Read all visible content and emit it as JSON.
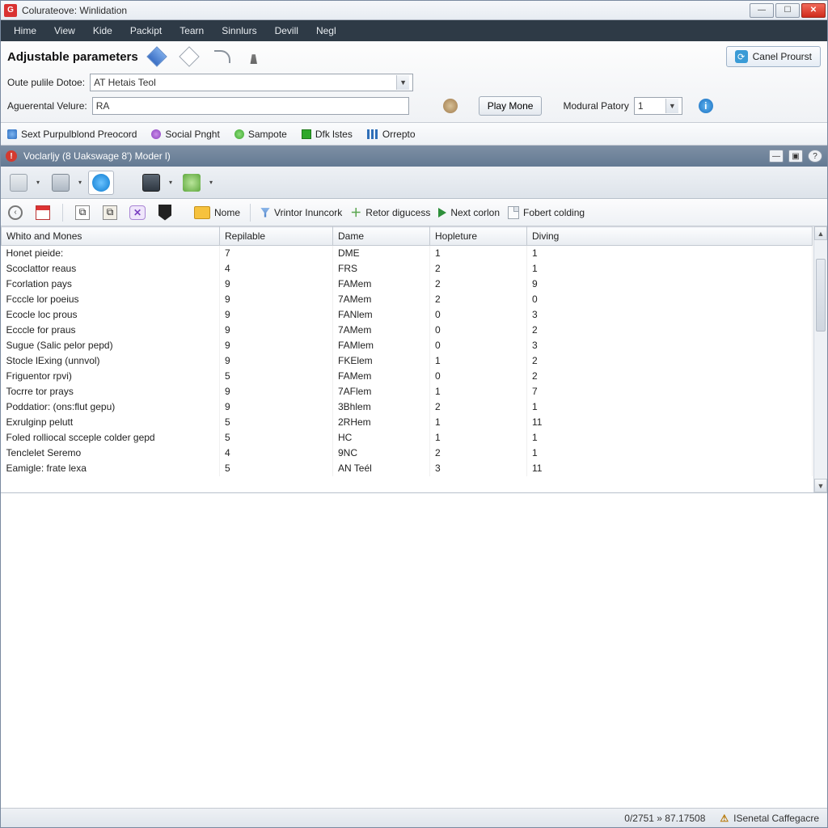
{
  "window": {
    "title": "Colurateove: Winlidation",
    "app_icon_letter": "G"
  },
  "menu": [
    "Hime",
    "View",
    "Kide",
    "Packipt",
    "Tearn",
    "Sinnlurs",
    "Devill",
    "Negl"
  ],
  "params": {
    "heading": "Adjustable parameters",
    "cancel_label": "Canel Prourst",
    "field1_label": "Oute pulile Dotoe:",
    "field1_value": "AT Hetais Teol",
    "field2_label": "Aguerental Velure:",
    "field2_value": "RA",
    "play_label": "Play Mone",
    "modural_label": "Modural Patory",
    "modural_value": "1"
  },
  "tabs": [
    {
      "icon": "blue-square",
      "label": "Sext Purpulblond Preocord"
    },
    {
      "icon": "purple-dot",
      "label": "Social Pnght"
    },
    {
      "icon": "green-dot",
      "label": "Sampote"
    },
    {
      "icon": "green-sq",
      "label": "Dfk lstes"
    },
    {
      "icon": "bars",
      "label": "Orrepto"
    }
  ],
  "section_header": "Voclarljy (8 Uakswage 8') Moder l)",
  "toolbar2": {
    "nome": "Nome",
    "vrintor": "Vrintor Inuncork",
    "retor": "Retor digucess",
    "next": "Next corlon",
    "fobert": "Fobert colding"
  },
  "table": {
    "columns": [
      "Whito and Mones",
      "Repilable",
      "Dame",
      "Hopleture",
      "Diving"
    ],
    "col_widths": [
      "270px",
      "140px",
      "120px",
      "120px",
      "auto"
    ],
    "rows": [
      [
        "Honet pieide:",
        "7",
        "DME",
        "1",
        "1"
      ],
      [
        "Scoclattor reaus",
        "4",
        "FRS",
        "2",
        "1"
      ],
      [
        "Fcorlation pays",
        "9",
        "FAMem",
        "2",
        "9"
      ],
      [
        "Fcccle lor poeius",
        "9",
        "7AMem",
        "2",
        "0"
      ],
      [
        "Ecocle loc prous",
        "9",
        "FANlem",
        "0",
        "3"
      ],
      [
        "Ecccle for praus",
        "9",
        "7AMem",
        "0",
        "2"
      ],
      [
        "Sugue (Salic pelor pepd)",
        "9",
        "FAMlem",
        "0",
        "3"
      ],
      [
        "Stocle lExing (unnvol)",
        "9",
        "FKElem",
        "1",
        "2"
      ],
      [
        "Friguentor rpvi)",
        "5",
        "FAMem",
        "0",
        "2"
      ],
      [
        "Tocrre tor prays",
        "9",
        "7AFlem",
        "1",
        "7"
      ],
      [
        "Poddatior: (ons:flut gepu)",
        "9",
        "3Bhlem",
        "2",
        "1"
      ],
      [
        "Exrulginp pelutt",
        "5",
        "2RHem",
        "1",
        "11"
      ],
      [
        "Foled rolliocal scceple colder gepd",
        "5",
        "HC",
        "1",
        "1"
      ],
      [
        "Tenclelet Seremo",
        "4",
        "9NC",
        "2",
        "1"
      ],
      [
        "Eamigle: frate lexa",
        "5",
        "AN Teél",
        "3",
        "11"
      ]
    ]
  },
  "status": {
    "left": "0/2751 » 87.17508",
    "right": "ISenetal Caffegacre"
  },
  "colors": {
    "menubar_bg": "#2e3a46",
    "section_hdr_bg1": "#7e8fa4",
    "section_hdr_bg2": "#647a93",
    "accent_blue": "#3a9bd6"
  }
}
